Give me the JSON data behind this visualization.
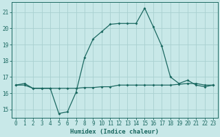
{
  "xlabel": "Humidex (Indice chaleur)",
  "background_color": "#c8e8e8",
  "grid_color": "#a8d0d0",
  "line_color": "#1a6860",
  "xlim": [
    -0.5,
    23.5
  ],
  "ylim": [
    14.5,
    21.6
  ],
  "yticks": [
    15,
    16,
    17,
    18,
    19,
    20,
    21
  ],
  "xticks": [
    0,
    1,
    2,
    3,
    4,
    5,
    6,
    7,
    8,
    9,
    10,
    11,
    12,
    13,
    14,
    15,
    16,
    17,
    18,
    19,
    20,
    21,
    22,
    23
  ],
  "line1_x": [
    0,
    1,
    2,
    3,
    4,
    5,
    6,
    7,
    8,
    9,
    10,
    11,
    12,
    13,
    14,
    15,
    16,
    17,
    18,
    19,
    20,
    21,
    22,
    23
  ],
  "line1_y": [
    16.5,
    16.6,
    16.3,
    16.3,
    16.3,
    14.75,
    14.85,
    16.05,
    18.2,
    19.35,
    19.8,
    20.25,
    20.3,
    20.3,
    20.3,
    21.25,
    20.1,
    18.9,
    17.0,
    16.6,
    16.8,
    16.5,
    16.4,
    16.5
  ],
  "line2_x": [
    0,
    1,
    2,
    3,
    4,
    5,
    6,
    7,
    8,
    9,
    10,
    11,
    12,
    13,
    14,
    15,
    16,
    17,
    18,
    19,
    20,
    21,
    22,
    23
  ],
  "line2_y": [
    16.5,
    16.5,
    16.3,
    16.3,
    16.3,
    16.3,
    16.3,
    16.3,
    16.35,
    16.35,
    16.4,
    16.4,
    16.5,
    16.5,
    16.5,
    16.5,
    16.5,
    16.5,
    16.5,
    16.55,
    16.6,
    16.6,
    16.5,
    16.5
  ]
}
